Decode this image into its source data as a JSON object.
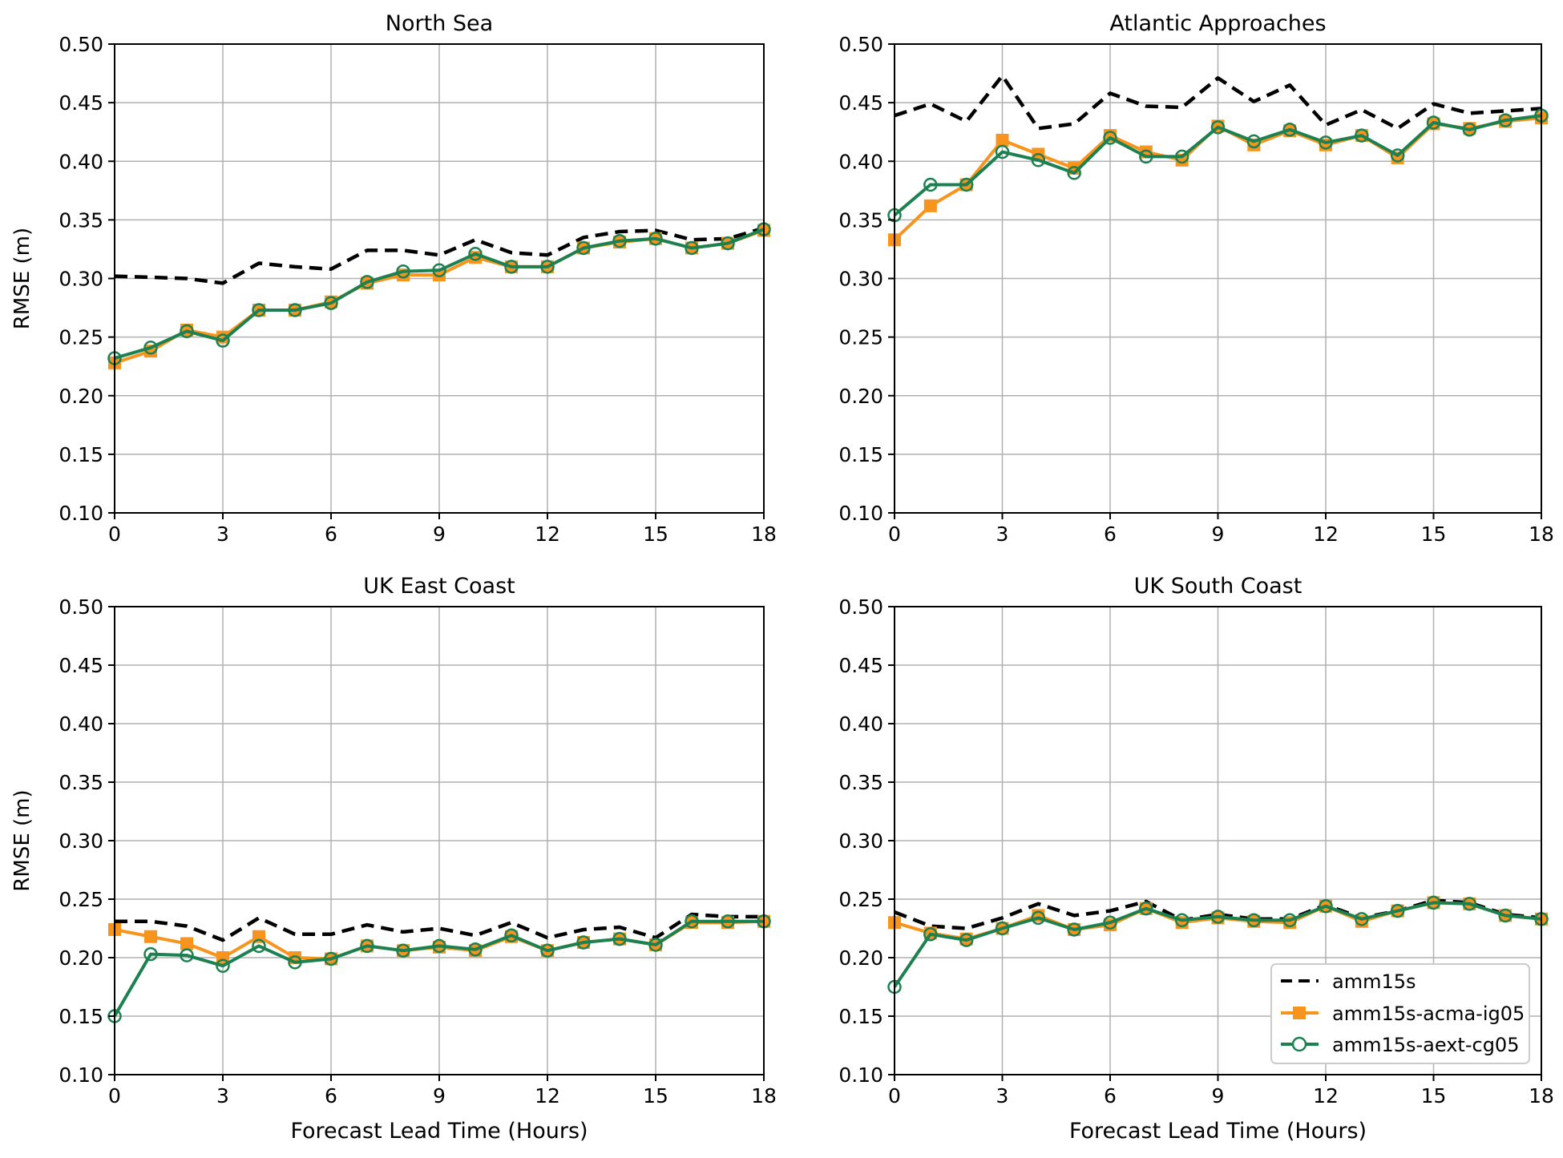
{
  "chart_data": [
    {
      "type": "line",
      "title": "North Sea",
      "xlabel": "",
      "ylabel": "RMSE (m)",
      "xlim": [
        0,
        18
      ],
      "ylim": [
        0.1,
        0.5
      ],
      "xticks": [
        "0",
        "3",
        "6",
        "9",
        "12",
        "15",
        "18"
      ],
      "yticks": [
        "0.10",
        "0.15",
        "0.20",
        "0.25",
        "0.30",
        "0.35",
        "0.40",
        "0.45",
        "0.50"
      ],
      "grid": true,
      "x": [
        0,
        1,
        2,
        3,
        4,
        5,
        6,
        7,
        8,
        9,
        10,
        11,
        12,
        13,
        14,
        15,
        16,
        17,
        18
      ],
      "series": [
        {
          "name": "amm15s",
          "values": [
            0.302,
            0.301,
            0.3,
            0.296,
            0.313,
            0.31,
            0.308,
            0.324,
            0.324,
            0.32,
            0.333,
            0.322,
            0.32,
            0.335,
            0.34,
            0.341,
            0.333,
            0.334,
            0.343
          ]
        },
        {
          "name": "amm15s-acma-ig05",
          "values": [
            0.228,
            0.238,
            0.256,
            0.25,
            0.273,
            0.273,
            0.28,
            0.296,
            0.303,
            0.303,
            0.318,
            0.31,
            0.31,
            0.326,
            0.331,
            0.334,
            0.326,
            0.33,
            0.341
          ]
        },
        {
          "name": "amm15s-aext-cg05",
          "values": [
            0.232,
            0.241,
            0.255,
            0.247,
            0.273,
            0.273,
            0.279,
            0.297,
            0.306,
            0.307,
            0.321,
            0.31,
            0.31,
            0.326,
            0.332,
            0.334,
            0.326,
            0.33,
            0.342
          ]
        }
      ]
    },
    {
      "type": "line",
      "title": "Atlantic Approaches",
      "xlabel": "",
      "ylabel": "",
      "xlim": [
        0,
        18
      ],
      "ylim": [
        0.1,
        0.5
      ],
      "xticks": [
        "0",
        "3",
        "6",
        "9",
        "12",
        "15",
        "18"
      ],
      "yticks": [
        "0.10",
        "0.15",
        "0.20",
        "0.25",
        "0.30",
        "0.35",
        "0.40",
        "0.45",
        "0.50"
      ],
      "grid": true,
      "x": [
        0,
        1,
        2,
        3,
        4,
        5,
        6,
        7,
        8,
        9,
        10,
        11,
        12,
        13,
        14,
        15,
        16,
        17,
        18
      ],
      "series": [
        {
          "name": "amm15s",
          "values": [
            0.439,
            0.449,
            0.434,
            0.473,
            0.428,
            0.432,
            0.458,
            0.447,
            0.446,
            0.471,
            0.451,
            0.465,
            0.431,
            0.444,
            0.428,
            0.449,
            0.441,
            0.443,
            0.445
          ]
        },
        {
          "name": "amm15s-acma-ig05",
          "values": [
            0.333,
            0.362,
            0.38,
            0.418,
            0.406,
            0.394,
            0.422,
            0.408,
            0.401,
            0.43,
            0.414,
            0.426,
            0.414,
            0.422,
            0.403,
            0.432,
            0.428,
            0.434,
            0.437
          ]
        },
        {
          "name": "amm15s-aext-cg05",
          "values": [
            0.354,
            0.38,
            0.38,
            0.408,
            0.401,
            0.39,
            0.42,
            0.404,
            0.404,
            0.429,
            0.417,
            0.427,
            0.416,
            0.422,
            0.405,
            0.433,
            0.427,
            0.435,
            0.439
          ]
        }
      ]
    },
    {
      "type": "line",
      "title": "UK East Coast",
      "xlabel": "Forecast Lead Time (Hours)",
      "ylabel": "RMSE (m)",
      "xlim": [
        0,
        18
      ],
      "ylim": [
        0.1,
        0.5
      ],
      "xticks": [
        "0",
        "3",
        "6",
        "9",
        "12",
        "15",
        "18"
      ],
      "yticks": [
        "0.10",
        "0.15",
        "0.20",
        "0.25",
        "0.30",
        "0.35",
        "0.40",
        "0.45",
        "0.50"
      ],
      "grid": true,
      "x": [
        0,
        1,
        2,
        3,
        4,
        5,
        6,
        7,
        8,
        9,
        10,
        11,
        12,
        13,
        14,
        15,
        16,
        17,
        18
      ],
      "series": [
        {
          "name": "amm15s",
          "values": [
            0.231,
            0.231,
            0.227,
            0.215,
            0.234,
            0.22,
            0.22,
            0.228,
            0.222,
            0.225,
            0.219,
            0.23,
            0.217,
            0.224,
            0.226,
            0.217,
            0.237,
            0.235,
            0.235
          ]
        },
        {
          "name": "amm15s-acma-ig05",
          "values": [
            0.224,
            0.218,
            0.212,
            0.2,
            0.218,
            0.2,
            0.199,
            0.21,
            0.206,
            0.209,
            0.206,
            0.218,
            0.206,
            0.213,
            0.216,
            0.211,
            0.23,
            0.23,
            0.231
          ]
        },
        {
          "name": "amm15s-aext-cg05",
          "values": [
            0.15,
            0.203,
            0.202,
            0.193,
            0.21,
            0.196,
            0.199,
            0.21,
            0.206,
            0.21,
            0.207,
            0.219,
            0.206,
            0.213,
            0.216,
            0.211,
            0.231,
            0.231,
            0.231
          ]
        }
      ]
    },
    {
      "type": "line",
      "title": "UK South Coast",
      "xlabel": "Forecast Lead Time (Hours)",
      "ylabel": "",
      "xlim": [
        0,
        18
      ],
      "ylim": [
        0.1,
        0.5
      ],
      "xticks": [
        "0",
        "3",
        "6",
        "9",
        "12",
        "15",
        "18"
      ],
      "yticks": [
        "0.10",
        "0.15",
        "0.20",
        "0.25",
        "0.30",
        "0.35",
        "0.40",
        "0.45",
        "0.50"
      ],
      "grid": true,
      "legend": "lower-right",
      "x": [
        0,
        1,
        2,
        3,
        4,
        5,
        6,
        7,
        8,
        9,
        10,
        11,
        12,
        13,
        14,
        15,
        16,
        17,
        18
      ],
      "series": [
        {
          "name": "amm15s",
          "values": [
            0.239,
            0.227,
            0.225,
            0.234,
            0.246,
            0.236,
            0.24,
            0.248,
            0.232,
            0.237,
            0.233,
            0.233,
            0.245,
            0.234,
            0.24,
            0.249,
            0.247,
            0.237,
            0.234
          ]
        },
        {
          "name": "amm15s-acma-ig05",
          "values": [
            0.23,
            0.221,
            0.216,
            0.225,
            0.236,
            0.224,
            0.228,
            0.242,
            0.23,
            0.234,
            0.231,
            0.23,
            0.244,
            0.231,
            0.24,
            0.247,
            0.246,
            0.236,
            0.233
          ]
        },
        {
          "name": "amm15s-aext-cg05",
          "values": [
            0.175,
            0.22,
            0.215,
            0.225,
            0.234,
            0.224,
            0.23,
            0.242,
            0.232,
            0.235,
            0.232,
            0.232,
            0.244,
            0.233,
            0.24,
            0.247,
            0.246,
            0.236,
            0.233
          ]
        }
      ]
    }
  ],
  "legend": {
    "items": [
      "amm15s",
      "amm15s-acma-ig05",
      "amm15s-aext-cg05"
    ]
  },
  "colors": {
    "baseline": "#000000",
    "acma": "#f7941d",
    "aext": "#1d8050",
    "grid": "#b0b0b0"
  }
}
